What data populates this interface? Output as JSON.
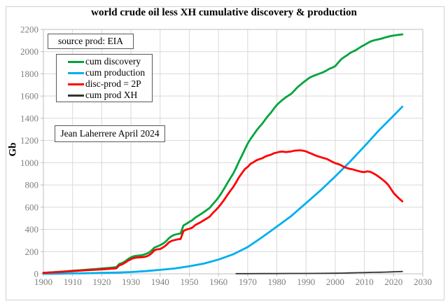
{
  "title": "world crude oil less XH cumulative discovery & production",
  "annotations": {
    "source_box": "source prod: EIA",
    "credit_box": "Jean Laherrere April 2024"
  },
  "legend": {
    "position": "upper-left",
    "items": [
      {
        "label": "cum discovery",
        "color": "#00a43c"
      },
      {
        "label": "cum production",
        "color": "#00aeef"
      },
      {
        "label": "disc-prod = 2P",
        "color": "#ff0000"
      },
      {
        "label": "cum prod XH",
        "color": "#333333"
      }
    ]
  },
  "axes": {
    "x_ticks": [
      1900,
      1910,
      1920,
      1930,
      1940,
      1950,
      1960,
      1970,
      1980,
      1990,
      2000,
      2010,
      2020,
      2030
    ],
    "y_ticks": [
      0,
      200,
      400,
      600,
      800,
      1000,
      1200,
      1400,
      1600,
      1800,
      2000,
      2200
    ],
    "tick_label_color": "#7f7f7f",
    "grid_color": "#d9d9d9",
    "border_color": "#bfbfbf"
  },
  "chart_data": {
    "type": "line",
    "title": "world crude oil less XH cumulative discovery & production",
    "xlabel": "",
    "ylabel": "Gb",
    "xlim": [
      1900,
      2030
    ],
    "ylim": [
      0,
      2200
    ],
    "grid": true,
    "legend_position": "upper-left",
    "series": [
      {
        "name": "cum discovery",
        "color": "#00a43c",
        "width": 2.8,
        "points": [
          [
            1900,
            8
          ],
          [
            1903,
            13
          ],
          [
            1905,
            17
          ],
          [
            1908,
            23
          ],
          [
            1910,
            27
          ],
          [
            1913,
            33
          ],
          [
            1915,
            37
          ],
          [
            1918,
            43
          ],
          [
            1920,
            48
          ],
          [
            1923,
            54
          ],
          [
            1925,
            60
          ],
          [
            1926,
            88
          ],
          [
            1927,
            97
          ],
          [
            1928,
            112
          ],
          [
            1929,
            132
          ],
          [
            1930,
            148
          ],
          [
            1931,
            158
          ],
          [
            1932,
            162
          ],
          [
            1934,
            168
          ],
          [
            1935,
            178
          ],
          [
            1936,
            188
          ],
          [
            1937,
            208
          ],
          [
            1938,
            235
          ],
          [
            1939,
            246
          ],
          [
            1940,
            258
          ],
          [
            1941,
            272
          ],
          [
            1942,
            292
          ],
          [
            1943,
            320
          ],
          [
            1944,
            340
          ],
          [
            1945,
            352
          ],
          [
            1946,
            358
          ],
          [
            1947,
            363
          ],
          [
            1948,
            435
          ],
          [
            1949,
            450
          ],
          [
            1950,
            468
          ],
          [
            1951,
            482
          ],
          [
            1952,
            505
          ],
          [
            1953,
            522
          ],
          [
            1954,
            538
          ],
          [
            1955,
            556
          ],
          [
            1956,
            575
          ],
          [
            1957,
            594
          ],
          [
            1958,
            625
          ],
          [
            1959,
            655
          ],
          [
            1960,
            688
          ],
          [
            1961,
            726
          ],
          [
            1962,
            770
          ],
          [
            1963,
            815
          ],
          [
            1964,
            858
          ],
          [
            1965,
            900
          ],
          [
            1966,
            952
          ],
          [
            1967,
            1010
          ],
          [
            1968,
            1062
          ],
          [
            1969,
            1118
          ],
          [
            1970,
            1172
          ],
          [
            1971,
            1215
          ],
          [
            1972,
            1252
          ],
          [
            1973,
            1290
          ],
          [
            1974,
            1322
          ],
          [
            1975,
            1352
          ],
          [
            1976,
            1388
          ],
          [
            1977,
            1422
          ],
          [
            1978,
            1452
          ],
          [
            1979,
            1488
          ],
          [
            1980,
            1520
          ],
          [
            1981,
            1545
          ],
          [
            1982,
            1568
          ],
          [
            1983,
            1588
          ],
          [
            1984,
            1605
          ],
          [
            1985,
            1622
          ],
          [
            1986,
            1650
          ],
          [
            1987,
            1678
          ],
          [
            1988,
            1700
          ],
          [
            1989,
            1722
          ],
          [
            1990,
            1742
          ],
          [
            1991,
            1762
          ],
          [
            1992,
            1776
          ],
          [
            1993,
            1786
          ],
          [
            1994,
            1796
          ],
          [
            1995,
            1806
          ],
          [
            1996,
            1816
          ],
          [
            1997,
            1830
          ],
          [
            1998,
            1846
          ],
          [
            1999,
            1856
          ],
          [
            2000,
            1870
          ],
          [
            2001,
            1900
          ],
          [
            2002,
            1930
          ],
          [
            2003,
            1950
          ],
          [
            2004,
            1966
          ],
          [
            2005,
            1986
          ],
          [
            2006,
            2000
          ],
          [
            2007,
            2012
          ],
          [
            2008,
            2030
          ],
          [
            2009,
            2046
          ],
          [
            2010,
            2060
          ],
          [
            2011,
            2076
          ],
          [
            2012,
            2090
          ],
          [
            2013,
            2100
          ],
          [
            2014,
            2106
          ],
          [
            2015,
            2112
          ],
          [
            2016,
            2118
          ],
          [
            2017,
            2126
          ],
          [
            2018,
            2134
          ],
          [
            2019,
            2140
          ],
          [
            2020,
            2145
          ],
          [
            2021,
            2149
          ],
          [
            2022,
            2152
          ],
          [
            2023,
            2155
          ]
        ]
      },
      {
        "name": "cum production",
        "color": "#00aeef",
        "width": 2.8,
        "points": [
          [
            1900,
            0
          ],
          [
            1905,
            1
          ],
          [
            1910,
            3
          ],
          [
            1915,
            5
          ],
          [
            1920,
            8
          ],
          [
            1925,
            11
          ],
          [
            1930,
            16
          ],
          [
            1935,
            24
          ],
          [
            1940,
            35
          ],
          [
            1945,
            48
          ],
          [
            1950,
            68
          ],
          [
            1955,
            92
          ],
          [
            1960,
            128
          ],
          [
            1965,
            175
          ],
          [
            1970,
            240
          ],
          [
            1975,
            330
          ],
          [
            1980,
            425
          ],
          [
            1985,
            522
          ],
          [
            1990,
            636
          ],
          [
            1995,
            752
          ],
          [
            2000,
            876
          ],
          [
            2005,
            1008
          ],
          [
            2010,
            1148
          ],
          [
            2015,
            1292
          ],
          [
            2020,
            1424
          ],
          [
            2023,
            1505
          ]
        ]
      },
      {
        "name": "disc-prod = 2P",
        "color": "#ff0000",
        "width": 2.8,
        "points": [
          [
            1900,
            8
          ],
          [
            1905,
            16
          ],
          [
            1910,
            24
          ],
          [
            1915,
            32
          ],
          [
            1920,
            40
          ],
          [
            1925,
            49
          ],
          [
            1926,
            76
          ],
          [
            1927,
            85
          ],
          [
            1928,
            100
          ],
          [
            1929,
            118
          ],
          [
            1930,
            132
          ],
          [
            1931,
            142
          ],
          [
            1932,
            146
          ],
          [
            1934,
            150
          ],
          [
            1935,
            154
          ],
          [
            1936,
            164
          ],
          [
            1937,
            183
          ],
          [
            1938,
            211
          ],
          [
            1939,
            220
          ],
          [
            1940,
            223
          ],
          [
            1941,
            237
          ],
          [
            1942,
            256
          ],
          [
            1943,
            283
          ],
          [
            1944,
            297
          ],
          [
            1945,
            304
          ],
          [
            1946,
            310
          ],
          [
            1947,
            313
          ],
          [
            1948,
            385
          ],
          [
            1949,
            398
          ],
          [
            1950,
            405
          ],
          [
            1951,
            415
          ],
          [
            1952,
            438
          ],
          [
            1953,
            452
          ],
          [
            1954,
            466
          ],
          [
            1955,
            482
          ],
          [
            1956,
            498
          ],
          [
            1957,
            515
          ],
          [
            1958,
            545
          ],
          [
            1959,
            572
          ],
          [
            1960,
            600
          ],
          [
            1961,
            632
          ],
          [
            1962,
            668
          ],
          [
            1963,
            708
          ],
          [
            1964,
            745
          ],
          [
            1965,
            780
          ],
          [
            1966,
            822
          ],
          [
            1967,
            868
          ],
          [
            1968,
            905
          ],
          [
            1969,
            942
          ],
          [
            1970,
            962
          ],
          [
            1971,
            990
          ],
          [
            1972,
            1005
          ],
          [
            1973,
            1022
          ],
          [
            1974,
            1032
          ],
          [
            1975,
            1040
          ],
          [
            1976,
            1055
          ],
          [
            1977,
            1065
          ],
          [
            1978,
            1072
          ],
          [
            1979,
            1085
          ],
          [
            1980,
            1092
          ],
          [
            1981,
            1098
          ],
          [
            1982,
            1100
          ],
          [
            1983,
            1096
          ],
          [
            1984,
            1098
          ],
          [
            1985,
            1102
          ],
          [
            1986,
            1108
          ],
          [
            1987,
            1110
          ],
          [
            1988,
            1112
          ],
          [
            1989,
            1108
          ],
          [
            1990,
            1102
          ],
          [
            1991,
            1090
          ],
          [
            1992,
            1080
          ],
          [
            1993,
            1068
          ],
          [
            1994,
            1058
          ],
          [
            1995,
            1050
          ],
          [
            1996,
            1042
          ],
          [
            1997,
            1035
          ],
          [
            1998,
            1022
          ],
          [
            1999,
            1008
          ],
          [
            2000,
            996
          ],
          [
            2001,
            988
          ],
          [
            2002,
            978
          ],
          [
            2003,
            962
          ],
          [
            2004,
            952
          ],
          [
            2005,
            945
          ],
          [
            2006,
            940
          ],
          [
            2007,
            932
          ],
          [
            2008,
            925
          ],
          [
            2009,
            918
          ],
          [
            2010,
            915
          ],
          [
            2011,
            922
          ],
          [
            2012,
            918
          ],
          [
            2013,
            905
          ],
          [
            2014,
            890
          ],
          [
            2015,
            872
          ],
          [
            2016,
            852
          ],
          [
            2017,
            830
          ],
          [
            2018,
            805
          ],
          [
            2019,
            768
          ],
          [
            2020,
            728
          ],
          [
            2021,
            700
          ],
          [
            2022,
            675
          ],
          [
            2023,
            652
          ]
        ]
      },
      {
        "name": "cum prod XH",
        "color": "#333333",
        "width": 1.8,
        "points": [
          [
            1966,
            1
          ],
          [
            1970,
            1
          ],
          [
            1975,
            2
          ],
          [
            1980,
            2
          ],
          [
            1985,
            3
          ],
          [
            1990,
            3
          ],
          [
            1995,
            4
          ],
          [
            2000,
            5
          ],
          [
            2003,
            6
          ],
          [
            2005,
            8
          ],
          [
            2008,
            10
          ],
          [
            2010,
            11
          ],
          [
            2013,
            13
          ],
          [
            2015,
            14
          ],
          [
            2017,
            15
          ],
          [
            2019,
            17
          ],
          [
            2021,
            19
          ],
          [
            2023,
            21
          ]
        ]
      }
    ]
  }
}
